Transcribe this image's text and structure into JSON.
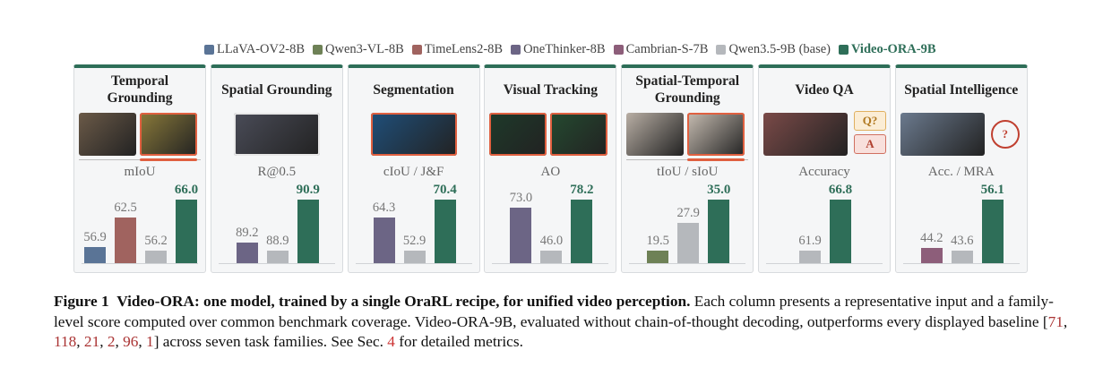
{
  "legend": [
    {
      "name": "LLaVA-OV2-8B",
      "color": "#5a7496"
    },
    {
      "name": "Qwen3-VL-8B",
      "color": "#6e8156"
    },
    {
      "name": "TimeLens2-8B",
      "color": "#a0635f"
    },
    {
      "name": "OneThinker-8B",
      "color": "#6c6585"
    },
    {
      "name": "Cambrian-S-7B",
      "color": "#8d5e7a"
    },
    {
      "name": "Qwen3.5-9B (base)",
      "color": "#b5b8bc"
    },
    {
      "name": "Video-ORA-9B",
      "color": "#2e6e58"
    }
  ],
  "chart_data": [
    {
      "type": "bar",
      "title": "Temporal Grounding",
      "metric": "mIoU",
      "values": [
        56.9,
        62.5,
        56.2,
        66.0
      ],
      "value_labels": [
        "56.9",
        "62.5",
        "56.2",
        "66.0"
      ],
      "colors": [
        "#5a7496",
        "#a0635f",
        "#b5b8bc",
        "#2e6e58"
      ],
      "ylim": [
        53.8,
        66.0
      ]
    },
    {
      "type": "bar",
      "title": "Spatial Grounding",
      "metric": "R@0.5",
      "values": [
        89.2,
        88.9,
        90.9
      ],
      "value_labels": [
        "89.2",
        "88.9",
        "90.9"
      ],
      "colors": [
        "#6c6585",
        "#b5b8bc",
        "#2e6e58"
      ],
      "ylim": [
        88.4,
        90.9
      ]
    },
    {
      "type": "bar",
      "title": "Segmentation",
      "metric": "cIoU / J&F",
      "values": [
        64.3,
        52.9,
        70.4
      ],
      "value_labels": [
        "64.3",
        "52.9",
        "70.4"
      ],
      "colors": [
        "#6c6585",
        "#b5b8bc",
        "#2e6e58"
      ],
      "ylim": [
        48.6,
        70.4
      ]
    },
    {
      "type": "bar",
      "title": "Visual Tracking",
      "metric": "AO",
      "values": [
        73.0,
        46.0,
        78.2
      ],
      "value_labels": [
        "73.0",
        "46.0",
        "78.2"
      ],
      "colors": [
        "#6c6585",
        "#b5b8bc",
        "#2e6e58"
      ],
      "ylim": [
        38.1,
        78.2
      ]
    },
    {
      "type": "bar",
      "title": "Spatial-Temporal Grounding",
      "metric": "tIoU / sIoU",
      "values": [
        19.5,
        27.9,
        35.0
      ],
      "value_labels": [
        "19.5",
        "27.9",
        "35.0"
      ],
      "colors": [
        "#6e8156",
        "#b5b8bc",
        "#2e6e58"
      ],
      "ylim": [
        15.7,
        35.0
      ]
    },
    {
      "type": "bar",
      "title": "Video QA",
      "metric": "Accuracy",
      "values": [
        61.9,
        66.8
      ],
      "value_labels": [
        "61.9",
        "66.8"
      ],
      "colors": [
        "#b5b8bc",
        "#2e6e58"
      ],
      "ylim": [
        60.7,
        66.8
      ]
    },
    {
      "type": "bar",
      "title": "Spatial Intelligence",
      "metric": "Acc. / MRA",
      "values": [
        44.2,
        43.6,
        56.1
      ],
      "value_labels": [
        "44.2",
        "43.6",
        "56.1"
      ],
      "colors": [
        "#8d5e7a",
        "#b5b8bc",
        "#2e6e58"
      ],
      "ylim": [
        40.5,
        56.1
      ]
    }
  ],
  "icons": {
    "question": "Q?",
    "answer": "A",
    "unknown": "?"
  },
  "caption": {
    "label": "Figure 1",
    "title": "Video-ORA: one model, trained by a single OraRL recipe, for unified video perception.",
    "body": [
      {
        "text": "Each column presents a representative input and a family-level score computed over common benchmark coverage. Video-ORA-9B, evaluated without chain-of-thought decoding, outperforms every displayed baseline ["
      },
      {
        "text": "71",
        "ref": true
      },
      {
        "text": ", "
      },
      {
        "text": "118",
        "ref": true
      },
      {
        "text": ", "
      },
      {
        "text": "21",
        "ref": true
      },
      {
        "text": ", "
      },
      {
        "text": "2",
        "ref": true
      },
      {
        "text": ", "
      },
      {
        "text": "96",
        "ref": true
      },
      {
        "text": ", "
      },
      {
        "text": "1",
        "ref": true
      },
      {
        "text": "] across seven task families. See Sec. "
      },
      {
        "text": "4",
        "ref": true,
        "section": true
      },
      {
        "text": " for detailed metrics."
      }
    ]
  }
}
